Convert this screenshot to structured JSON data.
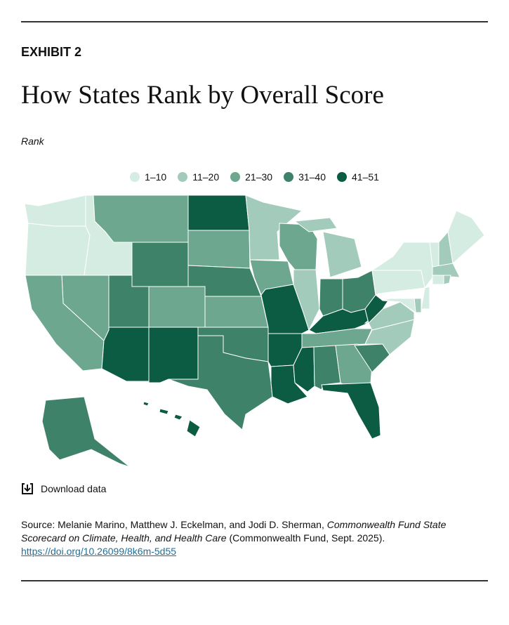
{
  "header": {
    "exhibit": "EXHIBIT 2",
    "title": "How States Rank by Overall Score",
    "subtitle": "Rank"
  },
  "legend": {
    "items": [
      {
        "label": "1–10",
        "color": "#d5ece3"
      },
      {
        "label": "11–20",
        "color": "#a3cbbb"
      },
      {
        "label": "21–30",
        "color": "#6da790"
      },
      {
        "label": "31–40",
        "color": "#3e826a"
      },
      {
        "label": "41–51",
        "color": "#0b5c42"
      }
    ]
  },
  "download": "Download data",
  "source": {
    "prefix": "Source: Melanie Marino, Matthew J. Eckelman, and Jodi D. Sherman, ",
    "italic": "Commonwealth Fund State Scorecard on Climate, Health, and Health Care",
    "suffix": " (Commonwealth Fund, Sept. 2025).",
    "link": "https://doi.org/10.26099/8k6m-5d55"
  }
}
